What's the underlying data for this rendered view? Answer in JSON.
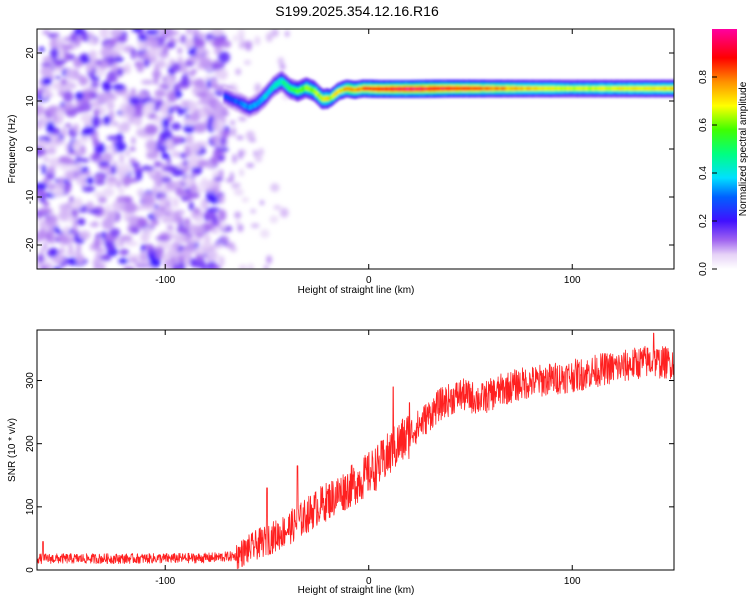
{
  "figure_title": "S199.2025.354.12.16.R16",
  "chart_data": [
    {
      "type": "heatmap",
      "xlabel": "Height of straight line (km)",
      "ylabel": "Frequency (Hz)",
      "xlim": [
        -163,
        150
      ],
      "ylim": [
        -25,
        25
      ],
      "x_ticks": [
        -100,
        0,
        100
      ],
      "x_tick_labels": [
        "-100",
        "0",
        "100"
      ],
      "y_ticks": [
        -20,
        -10,
        0,
        10,
        20
      ],
      "y_tick_labels": [
        "-20",
        "-10",
        "0",
        "10",
        "20"
      ],
      "colorbar": {
        "label": "Normalized spectral amplitude",
        "range": [
          0,
          1
        ],
        "ticks": [
          0.0,
          0.2,
          0.4,
          0.6,
          0.8
        ],
        "tick_labels": [
          "0.0",
          "0.2",
          "0.4",
          "0.6",
          "0.8"
        ],
        "colormap": [
          "#ffffff",
          "#d8b8f0",
          "#7a2ff0",
          "#2020ff",
          "#00e0ff",
          "#00ff40",
          "#ffff00",
          "#ff8000",
          "#ff0000",
          "#ff00a0"
        ]
      },
      "ridge_track": [
        {
          "x": -71,
          "y": 11.0
        },
        {
          "x": -67,
          "y": 10.2
        },
        {
          "x": -63,
          "y": 9.5
        },
        {
          "x": -59,
          "y": 8.6
        },
        {
          "x": -55,
          "y": 9.4
        },
        {
          "x": -51,
          "y": 11.0
        },
        {
          "x": -47,
          "y": 13.0
        },
        {
          "x": -43,
          "y": 14.2
        },
        {
          "x": -39,
          "y": 12.6
        },
        {
          "x": -35,
          "y": 12.0
        },
        {
          "x": -31,
          "y": 12.8
        },
        {
          "x": -27,
          "y": 12.1
        },
        {
          "x": -23,
          "y": 10.4
        },
        {
          "x": -19,
          "y": 10.6
        },
        {
          "x": -15,
          "y": 12.0
        },
        {
          "x": -11,
          "y": 12.6
        },
        {
          "x": -7,
          "y": 12.3
        },
        {
          "x": -3,
          "y": 12.6
        },
        {
          "x": 5,
          "y": 12.5
        },
        {
          "x": 20,
          "y": 12.5
        },
        {
          "x": 40,
          "y": 12.6
        },
        {
          "x": 60,
          "y": 12.6
        },
        {
          "x": 80,
          "y": 12.6
        },
        {
          "x": 100,
          "y": 12.6
        },
        {
          "x": 120,
          "y": 12.6
        },
        {
          "x": 148,
          "y": 12.6
        }
      ],
      "ridge_amplitude": [
        {
          "x": -71,
          "v": 0.25
        },
        {
          "x": -55,
          "v": 0.35
        },
        {
          "x": -43,
          "v": 0.45
        },
        {
          "x": -31,
          "v": 0.6
        },
        {
          "x": -15,
          "v": 0.7
        },
        {
          "x": 0,
          "v": 0.85
        },
        {
          "x": 20,
          "v": 0.95
        },
        {
          "x": 45,
          "v": 0.85
        },
        {
          "x": 70,
          "v": 0.75
        },
        {
          "x": 100,
          "v": 0.65
        },
        {
          "x": 148,
          "v": 0.7
        }
      ],
      "noise_region_x": [
        -163,
        -70
      ]
    },
    {
      "type": "line",
      "xlabel": "Height of straight line (km)",
      "ylabel": "SNR (10 * v/v)",
      "xlim": [
        -163,
        150
      ],
      "ylim": [
        0,
        380
      ],
      "x_ticks": [
        -100,
        0,
        100
      ],
      "x_tick_labels": [
        "-100",
        "0",
        "100"
      ],
      "y_ticks": [
        0,
        100,
        200,
        300
      ],
      "y_tick_labels": [
        "0",
        "100",
        "200",
        "300"
      ],
      "color": "#ff2020",
      "trend": [
        {
          "x": -163,
          "y": 18
        },
        {
          "x": -120,
          "y": 18
        },
        {
          "x": -80,
          "y": 19
        },
        {
          "x": -65,
          "y": 22
        },
        {
          "x": -55,
          "y": 40
        },
        {
          "x": -45,
          "y": 55
        },
        {
          "x": -35,
          "y": 75
        },
        {
          "x": -25,
          "y": 100
        },
        {
          "x": -15,
          "y": 120
        },
        {
          "x": -5,
          "y": 140
        },
        {
          "x": 5,
          "y": 165
        },
        {
          "x": 15,
          "y": 200
        },
        {
          "x": 25,
          "y": 230
        },
        {
          "x": 35,
          "y": 262
        },
        {
          "x": 45,
          "y": 278
        },
        {
          "x": 55,
          "y": 270
        },
        {
          "x": 65,
          "y": 285
        },
        {
          "x": 75,
          "y": 295
        },
        {
          "x": 85,
          "y": 300
        },
        {
          "x": 95,
          "y": 305
        },
        {
          "x": 105,
          "y": 310
        },
        {
          "x": 115,
          "y": 318
        },
        {
          "x": 125,
          "y": 322
        },
        {
          "x": 135,
          "y": 330
        },
        {
          "x": 150,
          "y": 328
        }
      ],
      "spikes": [
        {
          "x": -160,
          "y": 45
        },
        {
          "x": -50,
          "y": 130
        },
        {
          "x": -35,
          "y": 165
        },
        {
          "x": 12,
          "y": 290
        },
        {
          "x": 20,
          "y": 265
        },
        {
          "x": 140,
          "y": 375
        }
      ]
    }
  ]
}
